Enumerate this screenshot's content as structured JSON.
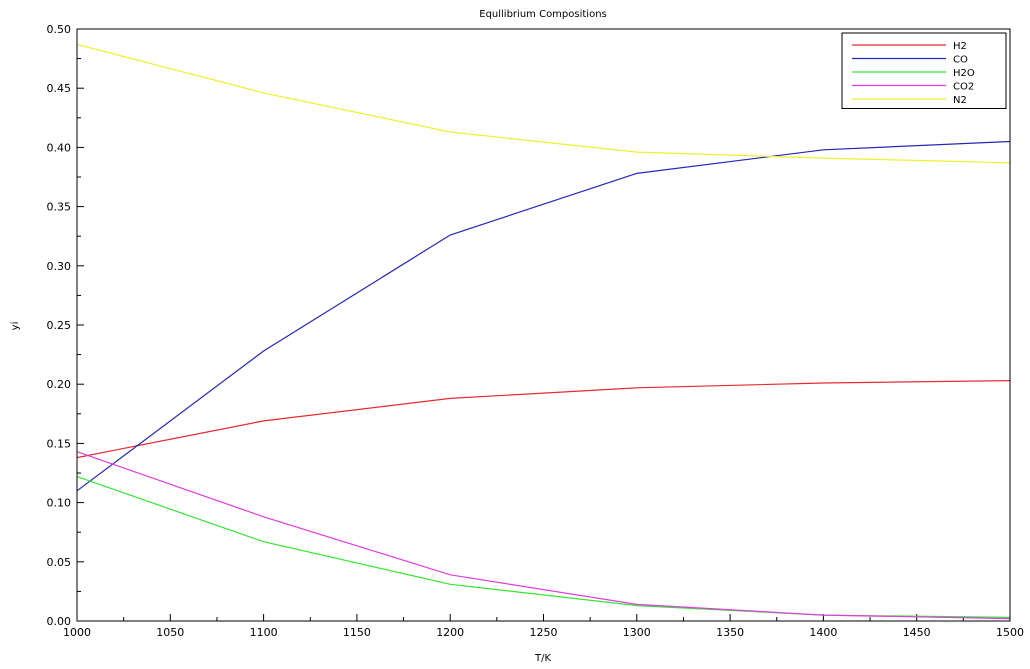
{
  "chart_data": {
    "type": "line",
    "title": "Equllibrium Compositions",
    "xlabel": "T/K",
    "ylabel": "yi",
    "xlim": [
      1000,
      1500
    ],
    "ylim": [
      0,
      0.5
    ],
    "xticks": [
      1000,
      1050,
      1100,
      1150,
      1200,
      1250,
      1300,
      1350,
      1400,
      1450,
      1500
    ],
    "xtick_labels": [
      "1000",
      "1050",
      "1100",
      "1150",
      "1200",
      "1250",
      "1300",
      "1350",
      "1400",
      "1450",
      "1500"
    ],
    "yticks": [
      0,
      0.05,
      0.1,
      0.15,
      0.2,
      0.25,
      0.3,
      0.35,
      0.4,
      0.45,
      0.5
    ],
    "ytick_labels": [
      "0.00",
      "0.05",
      "0.10",
      "0.15",
      "0.20",
      "0.25",
      "0.30",
      "0.35",
      "0.40",
      "0.45",
      "0.50"
    ],
    "grid": false,
    "legend_position": "top-right",
    "x": [
      1000,
      1100,
      1200,
      1300,
      1400,
      1500
    ],
    "series": [
      {
        "name": "H2",
        "color": "#e8292e",
        "values": [
          0.138,
          0.169,
          0.188,
          0.197,
          0.201,
          0.203
        ]
      },
      {
        "name": "CO",
        "color": "#2327b3",
        "values": [
          0.11,
          0.228,
          0.326,
          0.378,
          0.398,
          0.405
        ]
      },
      {
        "name": "H2O",
        "color": "#33e633",
        "values": [
          0.122,
          0.067,
          0.031,
          0.013,
          0.005,
          0.003
        ]
      },
      {
        "name": "CO2",
        "color": "#e03ce0",
        "values": [
          0.143,
          0.088,
          0.039,
          0.014,
          0.005,
          0.002
        ]
      },
      {
        "name": "N2",
        "color": "#f0f02a",
        "values": [
          0.487,
          0.446,
          0.413,
          0.396,
          0.391,
          0.387
        ]
      }
    ]
  }
}
